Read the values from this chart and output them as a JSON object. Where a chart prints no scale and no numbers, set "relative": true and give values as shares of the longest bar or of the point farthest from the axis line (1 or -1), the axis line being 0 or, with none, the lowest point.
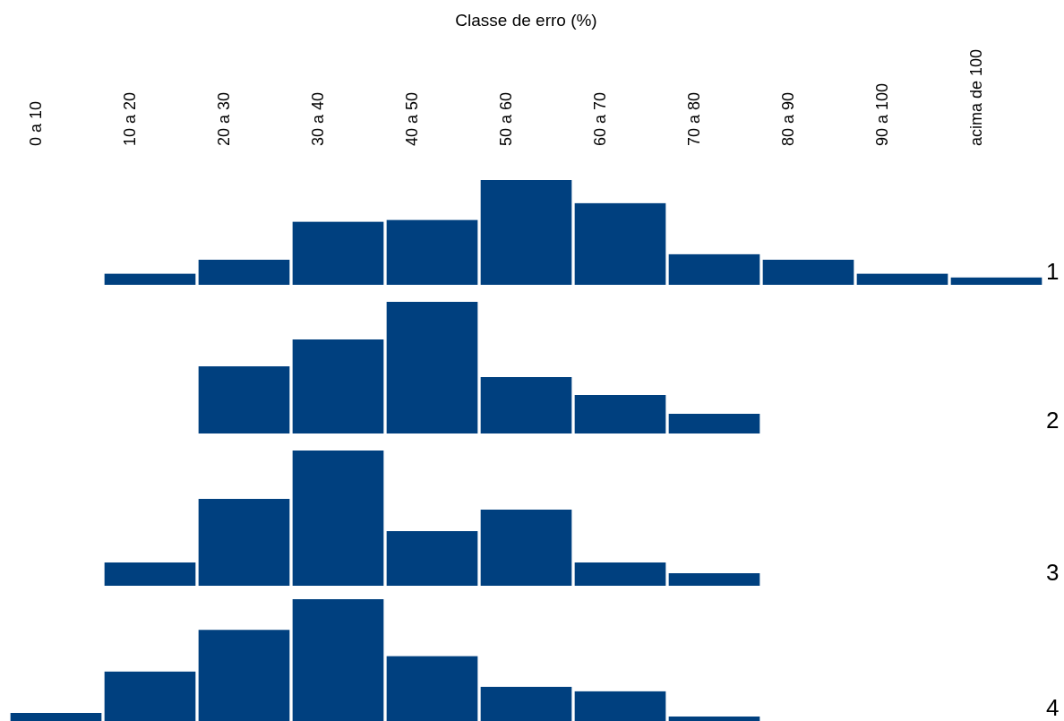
{
  "chart_data": [
    {
      "type": "bar",
      "xlabel": "Classe de erro (%)",
      "ylabel": "1",
      "categories": [
        "0 a 10",
        "10 a 20",
        "20 a 30",
        "30 a 40",
        "40 a 50",
        "50 a 60",
        "60 a 70",
        "70 a 80",
        "80 a 90",
        "90 a 100",
        "acima de 100"
      ],
      "values": [
        0,
        0.106,
        0.239,
        0.602,
        0.619,
        1,
        0.779,
        0.292,
        0.239,
        0.106,
        0.071
      ],
      "color": "#00407f",
      "relative": true,
      "tick_labels": "x"
    },
    {
      "type": "bar",
      "ylabel": "2",
      "categories": [
        null,
        null,
        null,
        null,
        null,
        null,
        null,
        null,
        null,
        null,
        null
      ],
      "values": [
        0,
        0,
        0.51,
        0.714,
        1,
        0.429,
        0.293,
        0.15,
        0,
        0,
        0
      ],
      "color": "#00407f",
      "relative": true,
      "tick_labels": false
    },
    {
      "type": "bar",
      "ylabel": "3",
      "categories": [
        null,
        null,
        null,
        null,
        null,
        null,
        null,
        null,
        null,
        null,
        null
      ],
      "values": [
        0,
        0.172,
        0.642,
        1,
        0.404,
        0.563,
        0.172,
        0.093,
        0,
        0,
        0
      ],
      "color": "#00407f",
      "relative": true,
      "tick_labels": false
    },
    {
      "type": "bar",
      "ylabel": "4",
      "categories": [
        null,
        null,
        null,
        null,
        null,
        null,
        null,
        null,
        null,
        null,
        null
      ],
      "values": [
        0.067,
        0.407,
        0.748,
        1,
        0.533,
        0.281,
        0.244,
        0.037,
        0,
        0,
        0
      ],
      "color": "#00407f",
      "relative": true,
      "tick_labels": false
    }
  ]
}
